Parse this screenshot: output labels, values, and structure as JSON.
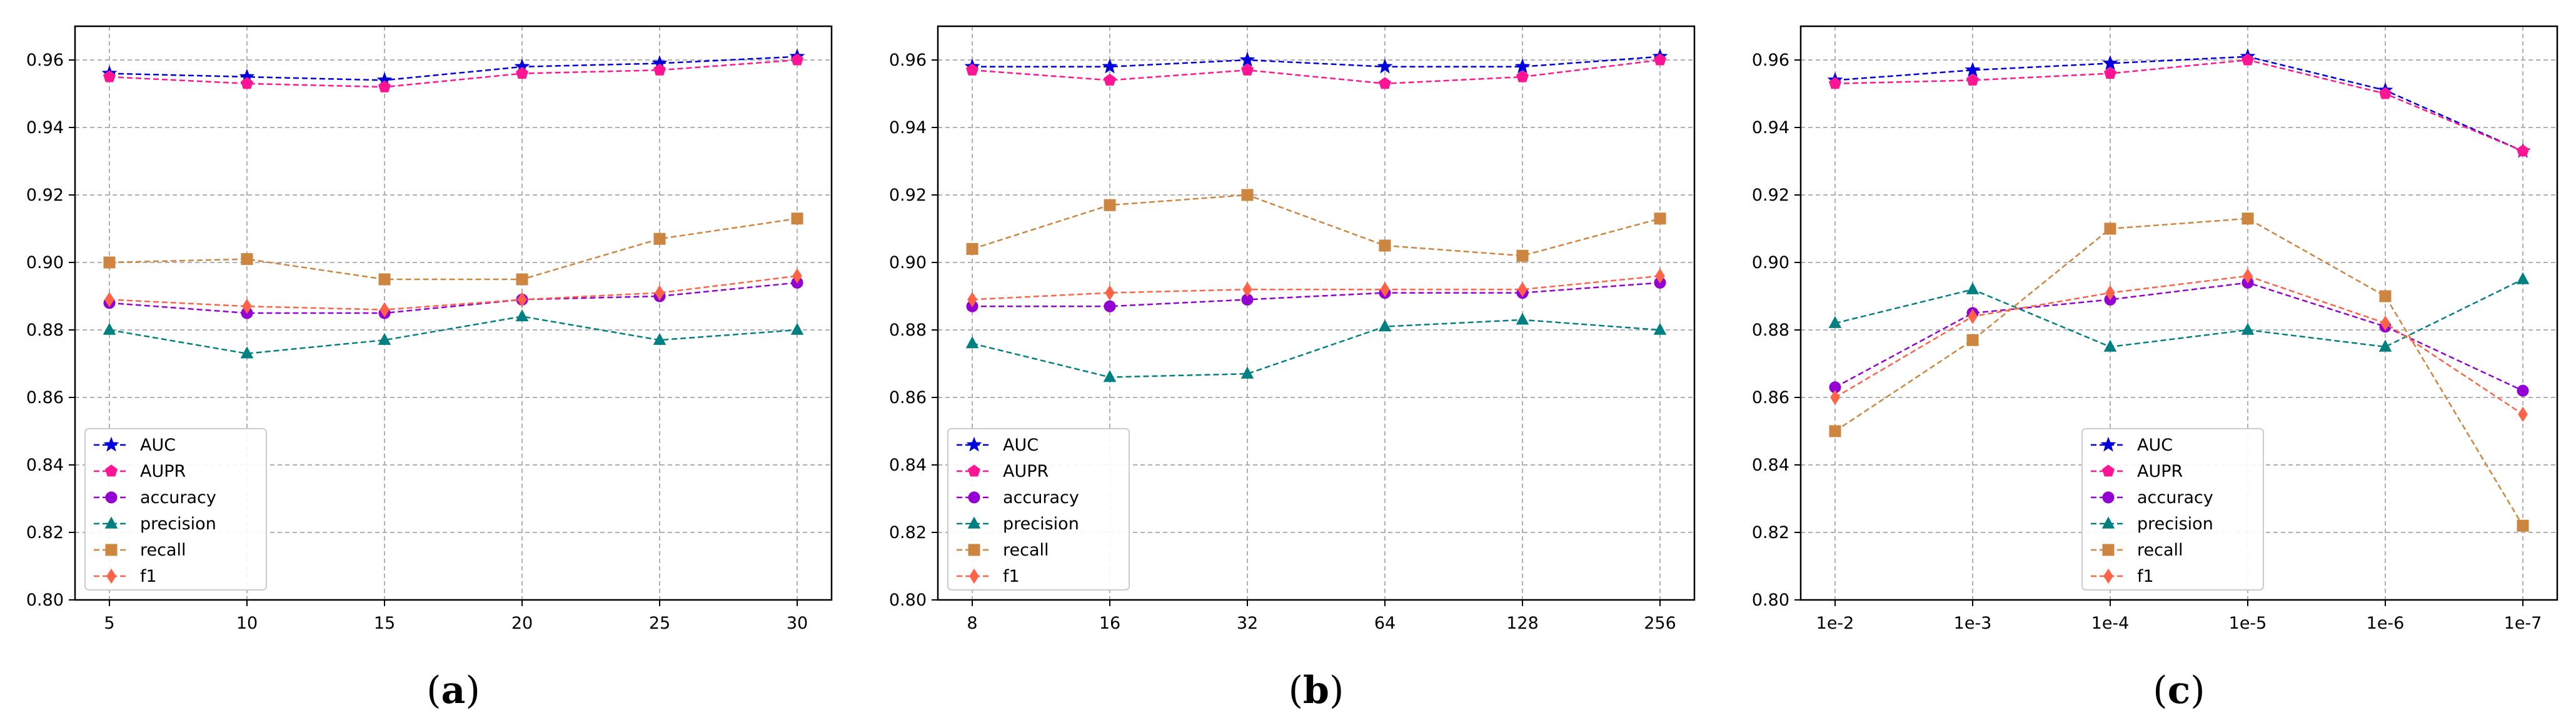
{
  "chart_data": [
    {
      "type": "line",
      "panel_label": "(a)",
      "categories": [
        "5",
        "10",
        "15",
        "20",
        "25",
        "30"
      ],
      "ylim": [
        0.8,
        0.97
      ],
      "yticks": [
        "0.80",
        "0.82",
        "0.84",
        "0.86",
        "0.88",
        "0.90",
        "0.92",
        "0.94",
        "0.96"
      ],
      "grid": true,
      "legend_position": "lower-left",
      "series": [
        {
          "name": "AUC",
          "color": "#0000dd",
          "marker": "star",
          "values": [
            0.956,
            0.955,
            0.954,
            0.958,
            0.959,
            0.961
          ]
        },
        {
          "name": "AUPR",
          "color": "#ff1493",
          "marker": "pentagon",
          "values": [
            0.955,
            0.953,
            0.952,
            0.956,
            0.957,
            0.96
          ]
        },
        {
          "name": "accuracy",
          "color": "#9400d3",
          "marker": "circle",
          "values": [
            0.888,
            0.885,
            0.885,
            0.889,
            0.89,
            0.894
          ]
        },
        {
          "name": "precision",
          "color": "#008080",
          "marker": "triangle",
          "values": [
            0.88,
            0.873,
            0.877,
            0.884,
            0.877,
            0.88
          ]
        },
        {
          "name": "recall",
          "color": "#cd853f",
          "marker": "square",
          "values": [
            0.9,
            0.901,
            0.895,
            0.895,
            0.907,
            0.913
          ]
        },
        {
          "name": "f1",
          "color": "#ff6347",
          "marker": "diamond",
          "values": [
            0.889,
            0.887,
            0.886,
            0.889,
            0.891,
            0.896
          ]
        }
      ]
    },
    {
      "type": "line",
      "panel_label": "(b)",
      "categories": [
        "8",
        "16",
        "32",
        "64",
        "128",
        "256"
      ],
      "ylim": [
        0.8,
        0.97
      ],
      "yticks": [
        "0.80",
        "0.82",
        "0.84",
        "0.86",
        "0.88",
        "0.90",
        "0.92",
        "0.94",
        "0.96"
      ],
      "grid": true,
      "legend_position": "lower-left",
      "series": [
        {
          "name": "AUC",
          "color": "#0000dd",
          "marker": "star",
          "values": [
            0.958,
            0.958,
            0.96,
            0.958,
            0.958,
            0.961
          ]
        },
        {
          "name": "AUPR",
          "color": "#ff1493",
          "marker": "pentagon",
          "values": [
            0.957,
            0.954,
            0.957,
            0.953,
            0.955,
            0.96
          ]
        },
        {
          "name": "accuracy",
          "color": "#9400d3",
          "marker": "circle",
          "values": [
            0.887,
            0.887,
            0.889,
            0.891,
            0.891,
            0.894
          ]
        },
        {
          "name": "precision",
          "color": "#008080",
          "marker": "triangle",
          "values": [
            0.876,
            0.866,
            0.867,
            0.881,
            0.883,
            0.88
          ]
        },
        {
          "name": "recall",
          "color": "#cd853f",
          "marker": "square",
          "values": [
            0.904,
            0.917,
            0.92,
            0.905,
            0.902,
            0.913
          ]
        },
        {
          "name": "f1",
          "color": "#ff6347",
          "marker": "diamond",
          "values": [
            0.889,
            0.891,
            0.892,
            0.892,
            0.892,
            0.896
          ]
        }
      ]
    },
    {
      "type": "line",
      "panel_label": "(c)",
      "categories": [
        "1e-2",
        "1e-3",
        "1e-4",
        "1e-5",
        "1e-6",
        "1e-7"
      ],
      "ylim": [
        0.8,
        0.97
      ],
      "yticks": [
        "0.80",
        "0.82",
        "0.84",
        "0.86",
        "0.88",
        "0.90",
        "0.92",
        "0.94",
        "0.96"
      ],
      "grid": true,
      "legend_position": "lower-center",
      "series": [
        {
          "name": "AUC",
          "color": "#0000dd",
          "marker": "star",
          "values": [
            0.954,
            0.957,
            0.959,
            0.961,
            0.951,
            0.933
          ]
        },
        {
          "name": "AUPR",
          "color": "#ff1493",
          "marker": "pentagon",
          "values": [
            0.953,
            0.954,
            0.956,
            0.96,
            0.95,
            0.933
          ]
        },
        {
          "name": "accuracy",
          "color": "#9400d3",
          "marker": "circle",
          "values": [
            0.863,
            0.885,
            0.889,
            0.894,
            0.881,
            0.862
          ]
        },
        {
          "name": "precision",
          "color": "#008080",
          "marker": "triangle",
          "values": [
            0.882,
            0.892,
            0.875,
            0.88,
            0.875,
            0.895
          ]
        },
        {
          "name": "recall",
          "color": "#cd853f",
          "marker": "square",
          "values": [
            0.85,
            0.877,
            0.91,
            0.913,
            0.89,
            0.822
          ]
        },
        {
          "name": "f1",
          "color": "#ff6347",
          "marker": "diamond",
          "values": [
            0.86,
            0.884,
            0.891,
            0.896,
            0.882,
            0.855
          ]
        }
      ]
    }
  ]
}
